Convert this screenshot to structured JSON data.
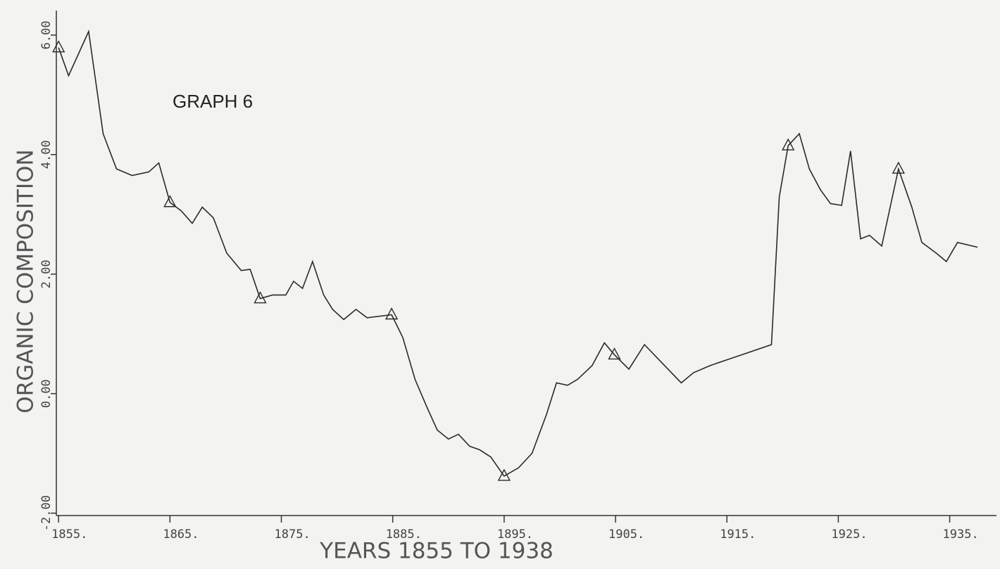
{
  "chart_data": {
    "type": "line",
    "title": "GRAPH   6",
    "x_label": "YEARS 1855 TO 1938",
    "y_label": "ORGANIC COMPOSITION",
    "x": [
      1855,
      1855.9,
      1857.7,
      1859.0,
      1860.2,
      1861.6,
      1863.1,
      1864.0,
      1865.0,
      1866.0,
      1867.0,
      1867.9,
      1868.9,
      1870.1,
      1871.4,
      1872.2,
      1873.1,
      1874.2,
      1875.4,
      1876.1,
      1876.9,
      1877.8,
      1878.8,
      1879.6,
      1880.6,
      1881.7,
      1882.7,
      1884.9,
      1885.9,
      1887.0,
      1888.1,
      1889.0,
      1890.0,
      1890.9,
      1891.9,
      1892.8,
      1893.8,
      1895.0,
      1896.3,
      1897.5,
      1898.8,
      1899.7,
      1900.7,
      1901.6,
      1902.9,
      1904.0,
      1904.9,
      1906.2,
      1907.6,
      1909.4,
      1910.9,
      1912.0,
      1913.5,
      1919.0,
      1919.7,
      1920.5,
      1921.5,
      1922.4,
      1923.4,
      1924.3,
      1925.3,
      1926.1,
      1927.0,
      1927.8,
      1928.9,
      1930.4,
      1931.6,
      1932.5,
      1933.8,
      1934.7,
      1935.7,
      1937.5
    ],
    "series": [
      {
        "color": "#2a2a2a",
        "values": [
          5.79,
          5.32,
          6.06,
          4.35,
          3.76,
          3.65,
          3.71,
          3.86,
          3.2,
          3.06,
          2.85,
          3.12,
          2.94,
          2.35,
          2.06,
          2.08,
          1.59,
          1.65,
          1.65,
          1.88,
          1.76,
          2.21,
          1.65,
          1.41,
          1.24,
          1.41,
          1.27,
          1.32,
          0.94,
          0.24,
          -0.24,
          -0.61,
          -0.76,
          -0.68,
          -0.88,
          -0.94,
          -1.06,
          -1.38,
          -1.24,
          -1.0,
          -0.35,
          0.18,
          0.14,
          0.24,
          0.47,
          0.85,
          0.65,
          0.41,
          0.82,
          0.47,
          0.18,
          0.35,
          0.47,
          0.82,
          3.29,
          4.15,
          4.35,
          3.76,
          3.41,
          3.18,
          3.15,
          4.06,
          2.59,
          2.65,
          2.47,
          3.76,
          3.12,
          2.53,
          2.35,
          2.21,
          2.53,
          2.45
        ]
      }
    ],
    "markers": {
      "x": [
        1855,
        1865.0,
        1873.1,
        1884.9,
        1895.0,
        1904.9,
        1920.5,
        1930.4
      ],
      "values": [
        5.79,
        3.2,
        1.59,
        1.32,
        -1.38,
        0.65,
        4.15,
        3.76
      ]
    },
    "xlim": [
      1854.8,
      1939.2
    ],
    "ylim": [
      -2.04,
      6.41
    ],
    "xticks": [
      {
        "value": 1855,
        "label": "1855."
      },
      {
        "value": 1865,
        "label": "1865."
      },
      {
        "value": 1875,
        "label": "1875."
      },
      {
        "value": 1885,
        "label": "1885."
      },
      {
        "value": 1895,
        "label": "1895."
      },
      {
        "value": 1905,
        "label": "1905."
      },
      {
        "value": 1915,
        "label": "1915."
      },
      {
        "value": 1925,
        "label": "1925."
      },
      {
        "value": 1935,
        "label": "1935."
      }
    ],
    "yticks": [
      {
        "value": -2,
        "label": "-2.00"
      },
      {
        "value": 0,
        "label": "0.00"
      },
      {
        "value": 2,
        "label": "2.00"
      },
      {
        "value": 4,
        "label": "4.00"
      },
      {
        "value": 6,
        "label": "6.00"
      }
    ]
  }
}
